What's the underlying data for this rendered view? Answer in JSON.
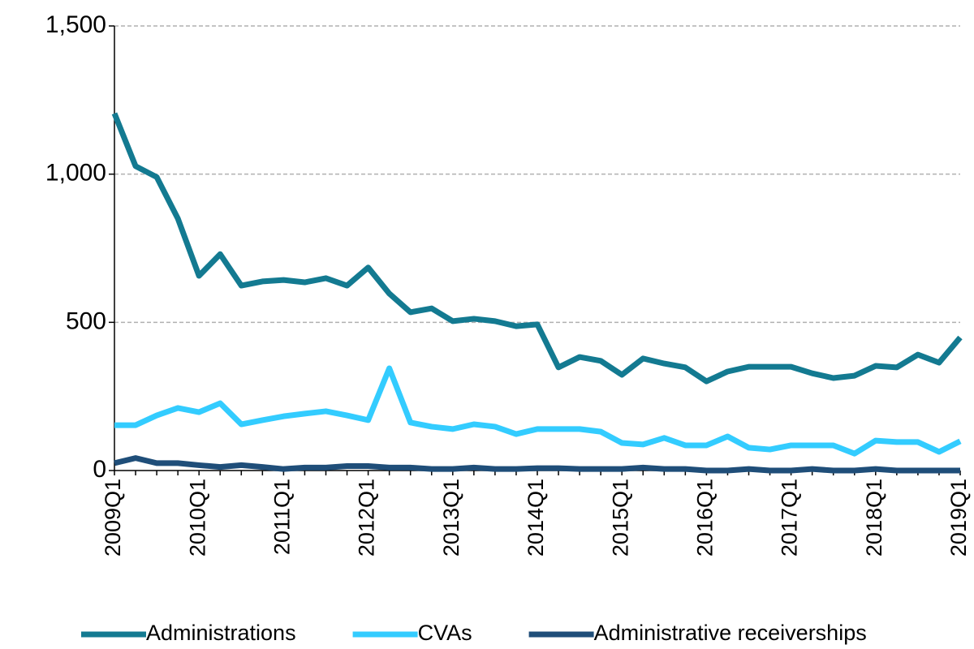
{
  "chart_data": {
    "type": "line",
    "categories": [
      "2009Q1",
      null,
      null,
      null,
      "2010Q1",
      null,
      null,
      null,
      "2011Q1",
      null,
      null,
      null,
      "2012Q1",
      null,
      null,
      null,
      "2013Q1",
      null,
      null,
      null,
      "2014Q1",
      null,
      null,
      null,
      "2015Q1",
      null,
      null,
      null,
      "2016Q1",
      null,
      null,
      null,
      "2017Q1",
      null,
      null,
      null,
      "2018Q1",
      null,
      null,
      null,
      "2019Q1"
    ],
    "series": [
      {
        "name": "Administrations",
        "color": "#137a91",
        "values": [
          1205,
          1027,
          990,
          850,
          657,
          730,
          624,
          638,
          643,
          635,
          649,
          624,
          685,
          597,
          534,
          547,
          504,
          512,
          504,
          487,
          493,
          348,
          383,
          370,
          323,
          378,
          361,
          348,
          301,
          334,
          350,
          350,
          350,
          328,
          312,
          320,
          353,
          348,
          391,
          364,
          449
        ]
      },
      {
        "name": "CVAs",
        "color": "#33ccff",
        "values": [
          153,
          153,
          186,
          211,
          197,
          227,
          156,
          170,
          183,
          192,
          200,
          186,
          170,
          345,
          162,
          148,
          140,
          156,
          148,
          123,
          140,
          140,
          140,
          131,
          93,
          88,
          110,
          85,
          85,
          115,
          77,
          71,
          85,
          85,
          85,
          57,
          101,
          96,
          96,
          63,
          99
        ]
      },
      {
        "name": "Administrative receiverships",
        "color": "#1f4e79",
        "values": [
          25,
          42,
          25,
          25,
          18,
          12,
          18,
          12,
          5,
          10,
          10,
          15,
          15,
          10,
          10,
          5,
          5,
          10,
          5,
          5,
          8,
          8,
          5,
          5,
          5,
          10,
          5,
          5,
          0,
          0,
          5,
          0,
          0,
          5,
          0,
          0,
          5,
          0,
          0,
          0,
          0
        ]
      }
    ],
    "ylim": [
      0,
      1500
    ],
    "yticks": [
      0,
      500,
      {
        "value": 1000,
        "label": "1,000"
      },
      {
        "value": 1500,
        "label": "1,500"
      }
    ],
    "grid": true,
    "legend": "bottom"
  }
}
